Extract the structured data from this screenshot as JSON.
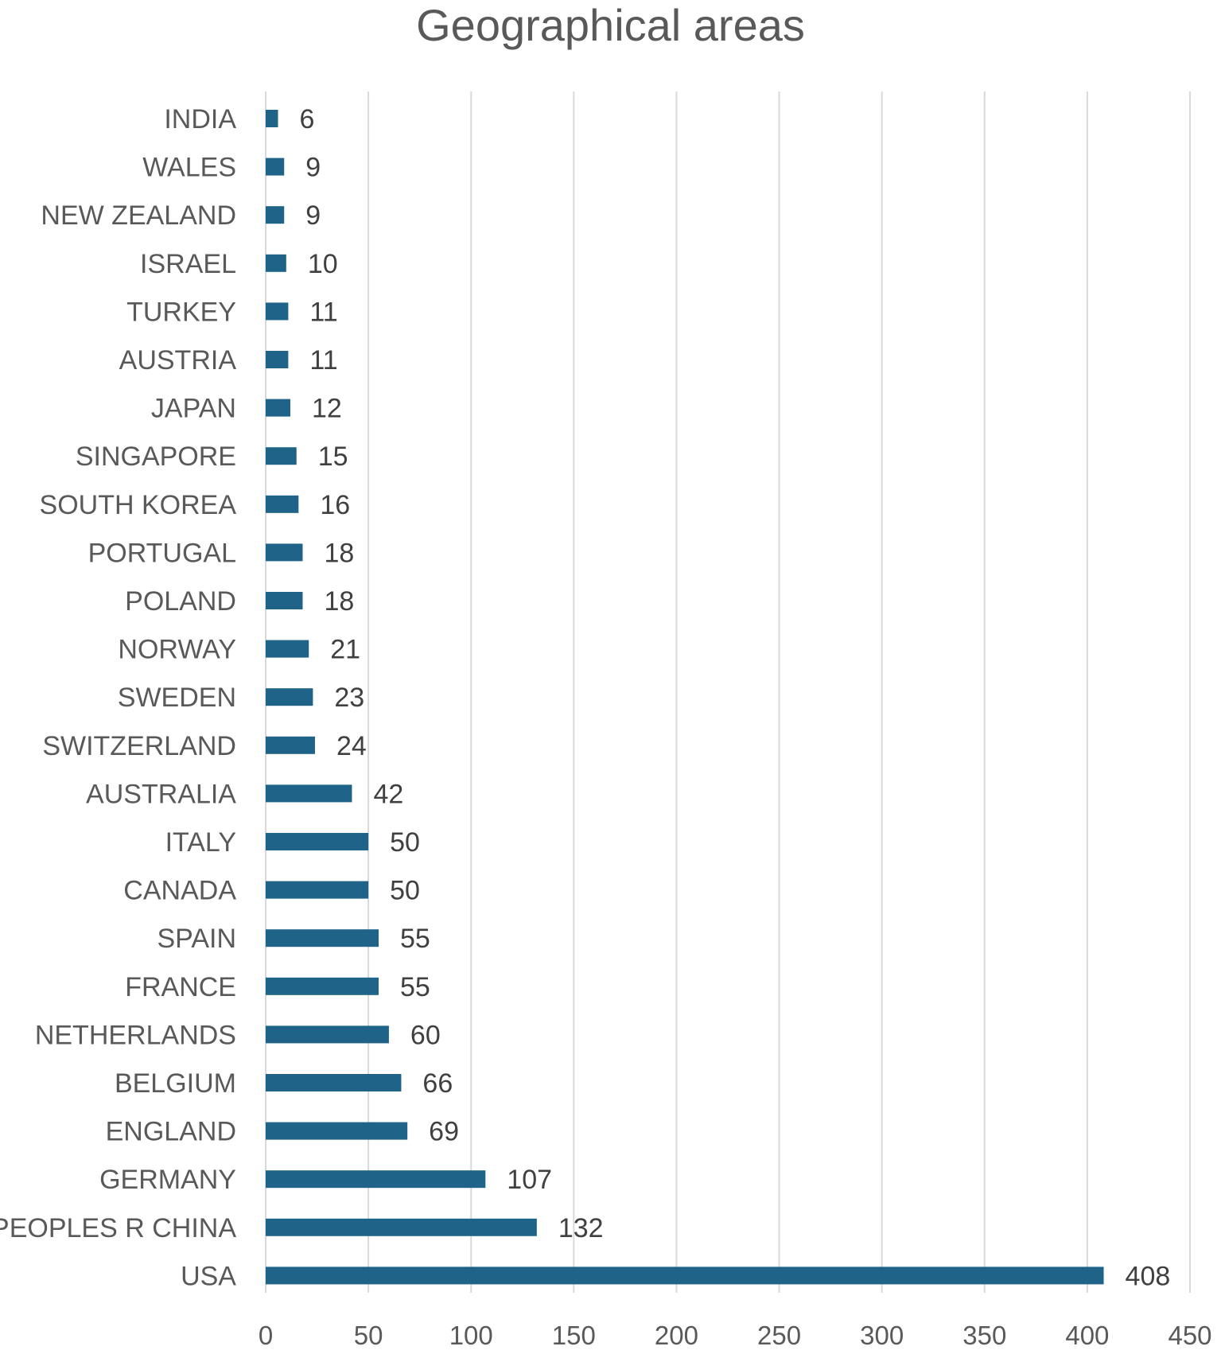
{
  "chart_data": {
    "type": "bar",
    "orientation": "horizontal",
    "title": "Geographical areas",
    "categories": [
      "INDIA",
      "WALES",
      "NEW ZEALAND",
      "ISRAEL",
      "TURKEY",
      "AUSTRIA",
      "JAPAN",
      "SINGAPORE",
      "SOUTH KOREA",
      "PORTUGAL",
      "POLAND",
      "NORWAY",
      "SWEDEN",
      "SWITZERLAND",
      "AUSTRALIA",
      "ITALY",
      "CANADA",
      "SPAIN",
      "FRANCE",
      "NETHERLANDS",
      "BELGIUM",
      "ENGLAND",
      "GERMANY",
      "PEOPLES R CHINA",
      "USA"
    ],
    "values": [
      6,
      9,
      9,
      10,
      11,
      11,
      12,
      15,
      16,
      18,
      18,
      21,
      23,
      24,
      42,
      50,
      50,
      55,
      55,
      60,
      66,
      69,
      107,
      132,
      408
    ],
    "xlim": [
      0,
      450
    ],
    "xticks": [
      0,
      50,
      100,
      150,
      200,
      250,
      300,
      350,
      400,
      450
    ],
    "grid": "vertical",
    "data_labels": true,
    "bar_color": "#1f6388",
    "grid_color": "#d9d9d9"
  }
}
